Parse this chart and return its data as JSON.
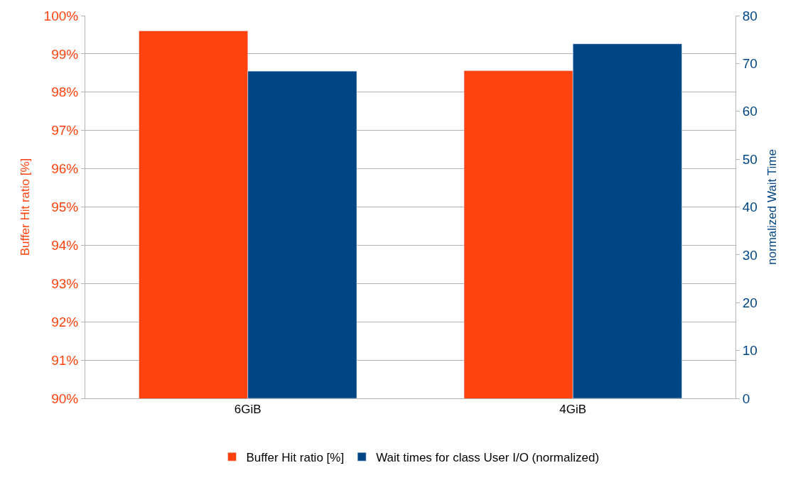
{
  "chart_data": {
    "type": "bar",
    "categories": [
      "6GiB",
      "4GiB"
    ],
    "ylabel": "Buffer Hit ratio [%]",
    "y2label": "normalized Wait Time",
    "series": [
      {
        "name": "Buffer Hit ratio [%]",
        "color": "#ff420e",
        "values": [
          99.6,
          98.56
        ]
      },
      {
        "name": "Wait times for class User I/O (normalized)",
        "color": "#004586",
        "values": [
          68.4,
          74.1
        ],
        "axis": "y2"
      }
    ],
    "ylim": [
      90,
      100
    ],
    "yticks": [
      {
        "value": 90,
        "label": "90%"
      },
      {
        "value": 91,
        "label": "91%"
      },
      {
        "value": 92,
        "label": "92%"
      },
      {
        "value": 93,
        "label": "93%"
      },
      {
        "value": 94,
        "label": "94%"
      },
      {
        "value": 95,
        "label": "95%"
      },
      {
        "value": 96,
        "label": "96%"
      },
      {
        "value": 97,
        "label": "97%"
      },
      {
        "value": 98,
        "label": "98%"
      },
      {
        "value": 99,
        "label": "99%"
      },
      {
        "value": 100,
        "label": "100%"
      }
    ],
    "y2lim": [
      0,
      80
    ],
    "y2ticks": [
      0,
      10,
      20,
      30,
      40,
      50,
      60,
      70,
      80
    ],
    "grid": "y",
    "legend": "bottom"
  }
}
